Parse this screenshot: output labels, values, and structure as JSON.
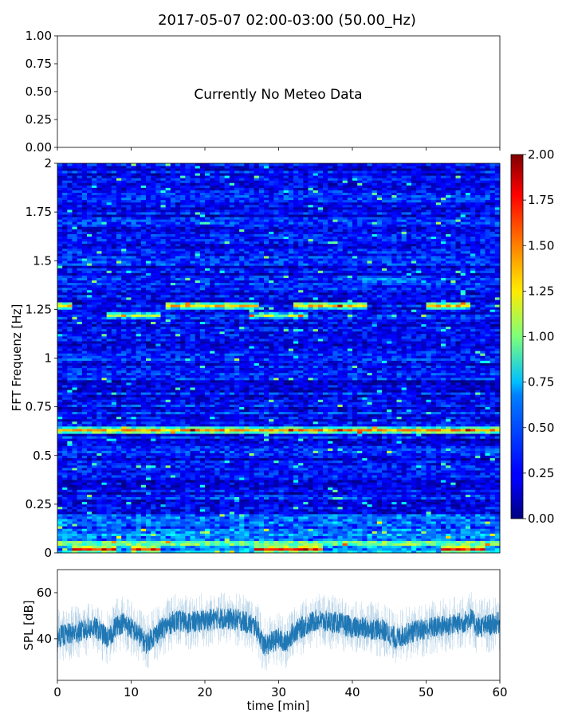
{
  "figure": {
    "title": "2017-05-07 02:00-03:00 (50.00_Hz)"
  },
  "chart_data": [
    {
      "type": "line",
      "panel": "meteo",
      "annotation": "Currently No Meteo Data",
      "xlim": [
        0,
        60
      ],
      "ylim": [
        0,
        1
      ],
      "yticks": [
        "0.00",
        "0.25",
        "0.50",
        "0.75",
        "1.00"
      ],
      "xtick_values": [
        0,
        10,
        20,
        30,
        40,
        50,
        60
      ],
      "series": []
    },
    {
      "type": "heatmap",
      "panel": "spectrogram",
      "ylabel": "FFT Frequenz [Hz]",
      "xlim": [
        0,
        60
      ],
      "ylim": [
        0,
        2
      ],
      "yticks": [
        {
          "v": 0,
          "label": "0"
        },
        {
          "v": 0.25,
          "label": "0.25"
        },
        {
          "v": 0.5,
          "label": "0.5"
        },
        {
          "v": 0.75,
          "label": "0.75"
        },
        {
          "v": 1,
          "label": "1"
        },
        {
          "v": 1.25,
          "label": "1.25"
        },
        {
          "v": 1.5,
          "label": "1.5"
        },
        {
          "v": 1.75,
          "label": "1.75"
        },
        {
          "v": 2,
          "label": "2"
        }
      ],
      "colormap": "jet",
      "colorbar": {
        "vmin": 0,
        "vmax": 2,
        "ticks": [
          "0.00",
          "0.25",
          "0.50",
          "0.75",
          "1.00",
          "1.25",
          "1.50",
          "1.75",
          "2.00"
        ]
      },
      "bands": [
        {
          "freq": 1.27,
          "intensity": 1.4,
          "segments": [
            [
              0,
              2
            ],
            [
              15,
              27
            ],
            [
              32,
              42
            ],
            [
              50,
              56
            ]
          ]
        },
        {
          "freq": 1.22,
          "intensity": 1.1,
          "segments": [
            [
              7,
              14
            ],
            [
              26,
              34
            ]
          ]
        },
        {
          "freq": 1.4,
          "intensity": 0.6,
          "segments": [
            [
              41,
              50
            ]
          ]
        },
        {
          "freq": 0.63,
          "intensity": 1.5,
          "segments": [
            [
              0,
              60
            ]
          ]
        },
        {
          "freq": 0.05,
          "intensity": 1.2,
          "segments": [
            [
              0,
              60
            ]
          ]
        },
        {
          "freq": 0.02,
          "intensity": 1.8,
          "segments": [
            [
              2,
              8
            ],
            [
              10,
              14
            ],
            [
              27,
              36
            ],
            [
              52,
              58
            ]
          ]
        }
      ],
      "background_level": 0.25
    },
    {
      "type": "line",
      "panel": "spl",
      "xlabel": "time [min]",
      "ylabel": "SPL [dB]",
      "xlim": [
        0,
        60
      ],
      "ylim": [
        22,
        70
      ],
      "yticks": [
        40,
        60
      ],
      "xticks": [
        0,
        10,
        20,
        30,
        40,
        50,
        60
      ],
      "color": "#1f77b4",
      "trend_points": [
        [
          0,
          41
        ],
        [
          3,
          43
        ],
        [
          5,
          45
        ],
        [
          7,
          40
        ],
        [
          8,
          46
        ],
        [
          9,
          47
        ],
        [
          11,
          42
        ],
        [
          12,
          38
        ],
        [
          14,
          44
        ],
        [
          16,
          48
        ],
        [
          18,
          47
        ],
        [
          20,
          48
        ],
        [
          22,
          49
        ],
        [
          25,
          48
        ],
        [
          27,
          45
        ],
        [
          28,
          37
        ],
        [
          30,
          40
        ],
        [
          31,
          38
        ],
        [
          32,
          43
        ],
        [
          35,
          48
        ],
        [
          38,
          47
        ],
        [
          40,
          45
        ],
        [
          44,
          44
        ],
        [
          46,
          40
        ],
        [
          48,
          43
        ],
        [
          51,
          45
        ],
        [
          55,
          47
        ],
        [
          56,
          49
        ],
        [
          57,
          45
        ],
        [
          60,
          47
        ]
      ],
      "band_width_db": 6,
      "spike_range_db": 12
    }
  ]
}
